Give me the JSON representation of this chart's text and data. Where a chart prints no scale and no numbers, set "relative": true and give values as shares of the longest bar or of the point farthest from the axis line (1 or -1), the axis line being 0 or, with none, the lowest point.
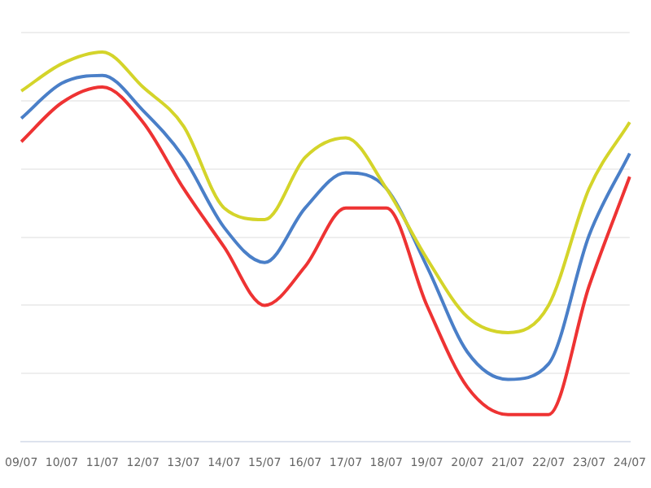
{
  "chart_data": {
    "type": "line",
    "relative": true,
    "grid": "y",
    "legend": false,
    "marker": "none",
    "categories": [
      "09/07",
      "10/07",
      "11/07",
      "12/07",
      "13/07",
      "14/07",
      "15/07",
      "16/07",
      "17/07",
      "18/07",
      "19/07",
      "20/07",
      "21/07",
      "22/07",
      "23/07",
      "24/07"
    ],
    "series": [
      {
        "color": "#d4d42a",
        "values": [
          0.9,
          0.97,
          1,
          0.91,
          0.81,
          0.6,
          0.57,
          0.73,
          0.78,
          0.65,
          0.47,
          0.32,
          0.28,
          0.35,
          0.65,
          0.82
        ]
      },
      {
        "color": "#4a7fc8",
        "values": [
          0.83,
          0.92,
          0.94,
          0.85,
          0.73,
          0.55,
          0.46,
          0.6,
          0.69,
          0.65,
          0.45,
          0.23,
          0.16,
          0.2,
          0.53,
          0.74
        ]
      },
      {
        "color": "#ee3333",
        "values": [
          0.77,
          0.87,
          0.91,
          0.82,
          0.65,
          0.5,
          0.35,
          0.45,
          0.6,
          0.6,
          0.35,
          0.14,
          0.07,
          0.07,
          0.4,
          0.68
        ]
      }
    ]
  }
}
